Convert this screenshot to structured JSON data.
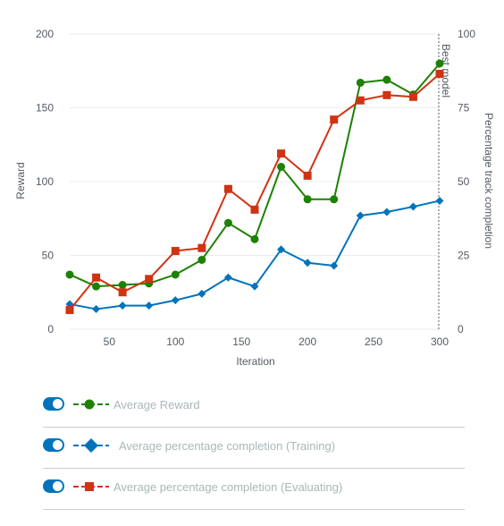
{
  "chart_data": {
    "type": "line",
    "x": [
      20,
      40,
      60,
      80,
      100,
      120,
      140,
      160,
      180,
      200,
      220,
      240,
      260,
      280,
      300
    ],
    "xlabel": "Iteration",
    "ylabel": "Reward",
    "y2label": "Percentage track completion",
    "xlim": [
      20,
      300
    ],
    "ylim": [
      0,
      200
    ],
    "y2lim": [
      0,
      100
    ],
    "x_ticks": [
      "50",
      "100",
      "150",
      "200",
      "250",
      "300"
    ],
    "y_ticks": [
      "0",
      "50",
      "100",
      "150",
      "200"
    ],
    "y2_ticks": [
      "0",
      "25",
      "50",
      "75",
      "100"
    ],
    "annotation": "Best model",
    "annotation_x": 300,
    "grid": true,
    "legend_placement": "bottom",
    "series": [
      {
        "name": "Average Reward",
        "axis": "left",
        "marker": "circle",
        "color": "#1d8102",
        "values": [
          37,
          29,
          30,
          31,
          37,
          47,
          72,
          61,
          110,
          88,
          88,
          167,
          169,
          159,
          180
        ]
      },
      {
        "name": "Average percentage completion (Training)",
        "axis": "right",
        "marker": "diamond",
        "color": "#0073bb",
        "values": [
          8.5,
          6.8,
          8,
          8,
          9.8,
          12,
          17.5,
          14.5,
          27,
          22.5,
          21.5,
          38.5,
          39.7,
          41.5,
          43.5
        ]
      },
      {
        "name": "Average percentage completion (Evaluating)",
        "axis": "right",
        "marker": "square",
        "color": "#d13212",
        "values": [
          6.5,
          17.5,
          12.5,
          17,
          26.5,
          27.5,
          47.5,
          40.5,
          59.5,
          52,
          71,
          77.5,
          79.3,
          78.7,
          86.5
        ]
      }
    ]
  },
  "legend": {
    "items": [
      {
        "label": "Average Reward"
      },
      {
        "label": "Average percentage completion (Training)"
      },
      {
        "label": "Average percentage completion (Evaluating)"
      }
    ]
  }
}
